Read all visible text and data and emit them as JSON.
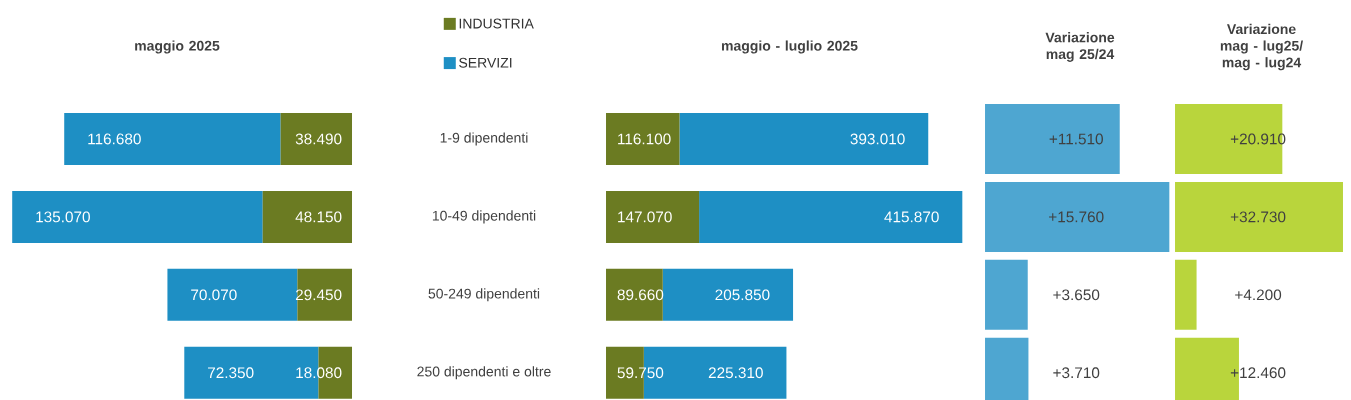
{
  "chart_data": [
    {
      "type": "bar",
      "orientation": "horizontal",
      "stacked": true,
      "title": "maggio 2025",
      "categories": [
        "1-9 dipendenti",
        "10-49 dipendenti",
        "50-249 dipendenti",
        "250 dipendenti e oltre"
      ],
      "tick_labels": "y",
      "legend": "top right",
      "series": [
        {
          "name": "INDUSTRIA",
          "color": "#6b7b22",
          "values": [
            38490,
            48150,
            29450,
            18080
          ],
          "value_labels": [
            "38.490",
            "48.150",
            "29.450",
            "18.080"
          ]
        },
        {
          "name": "SERVIZI",
          "color": "#1e8fc4",
          "values": [
            116680,
            135070,
            70070,
            72350
          ],
          "value_labels": [
            "116.680",
            "135.070",
            "70.070",
            "72.350"
          ]
        }
      ]
    },
    {
      "type": "bar",
      "orientation": "horizontal",
      "stacked": true,
      "title": "maggio - luglio 2025",
      "categories": [
        null,
        null,
        null,
        null
      ],
      "tick_labels": false,
      "series": [
        {
          "color": "#6b7b22",
          "values": [
            116100,
            147070,
            89660,
            59750
          ],
          "value_labels": [
            "116.100",
            "147.070",
            "89.660",
            "59.750"
          ]
        },
        {
          "color": "#1e8fc4",
          "values": [
            393010,
            415870,
            205850,
            225310
          ],
          "value_labels": [
            "393.010",
            "415.870",
            "205.850",
            "225.310"
          ]
        }
      ]
    },
    {
      "type": "bar",
      "orientation": "horizontal",
      "title": "Variazione mag 25/24",
      "categories": [
        null,
        null,
        null,
        null
      ],
      "tick_labels": false,
      "color": "#4ea6d1",
      "values": [
        11510,
        15760,
        3650,
        3710
      ],
      "value_labels": [
        "+11.510",
        "+15.760",
        "+3.650",
        "+3.710"
      ]
    },
    {
      "type": "bar",
      "orientation": "horizontal",
      "title": "Variazione mag - lug25/ mag - lug24",
      "categories": [
        null,
        null,
        null,
        null
      ],
      "tick_labels": false,
      "color": "#b9d53c",
      "values": [
        20910,
        32730,
        4200,
        12460
      ],
      "value_labels": [
        "+20.910",
        "+32.730",
        "+4.200",
        "+12.460"
      ]
    }
  ]
}
